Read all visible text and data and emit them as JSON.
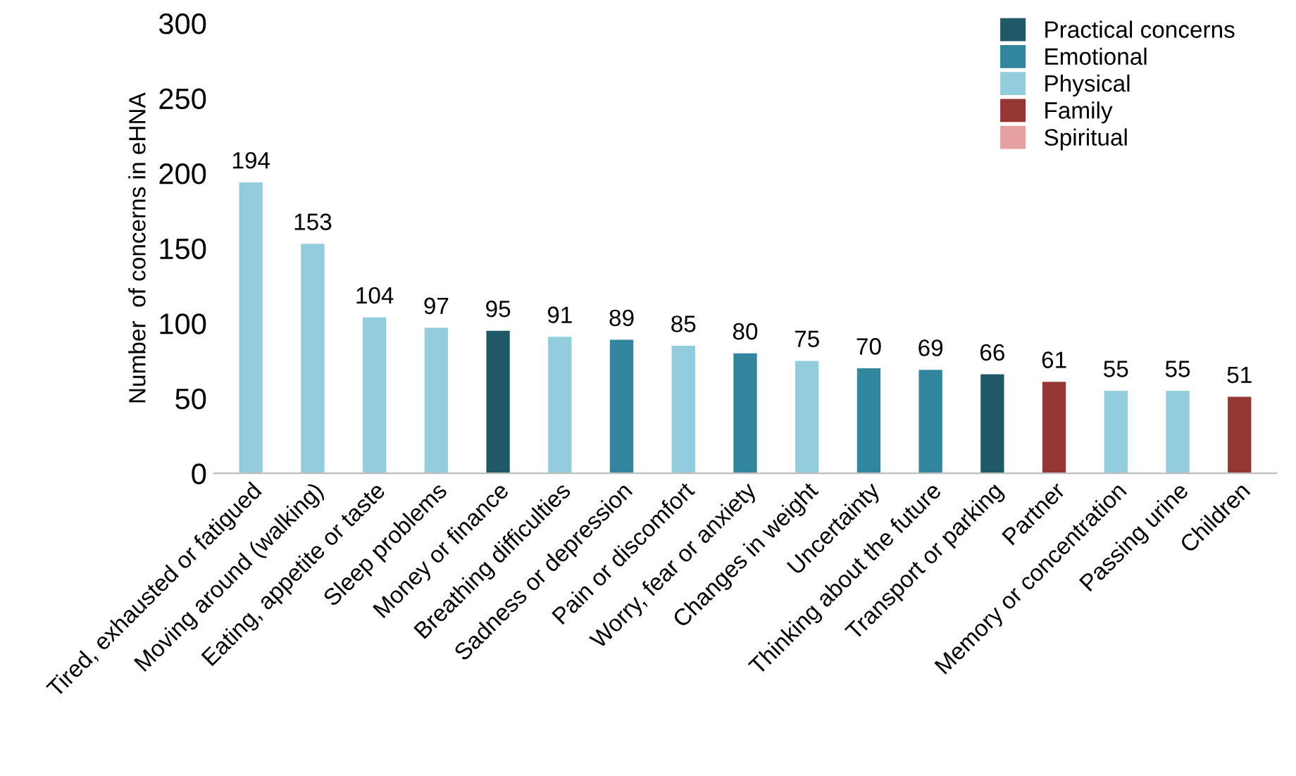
{
  "chart_data": {
    "type": "bar",
    "ylabel": "Number  of concerns in eHNA",
    "categories": [
      "Tired, exhausted or fatigued",
      "Moving around (walking)",
      "Eating, appetite or taste",
      "Sleep problems",
      "Money or finance",
      "Breathing difficulties",
      "Sadness or depression",
      "Pain or discomfort",
      "Worry, fear or anxiety",
      "Changes in weight",
      "Uncertainty",
      "Thinking about the future",
      "Transport or parking",
      "Partner",
      "Memory or concentration",
      "Passing urine",
      "Children"
    ],
    "series": [
      {
        "name": "Practical concerns",
        "color": "#215868",
        "values": [
          null,
          null,
          null,
          null,
          95,
          null,
          null,
          null,
          null,
          null,
          null,
          null,
          66,
          null,
          null,
          null,
          null
        ]
      },
      {
        "name": "Emotional",
        "color": "#31859c",
        "values": [
          null,
          null,
          null,
          null,
          null,
          null,
          89,
          null,
          80,
          null,
          70,
          69,
          null,
          null,
          null,
          null,
          null
        ]
      },
      {
        "name": "Physical",
        "color": "#93cddd",
        "values": [
          194,
          153,
          104,
          97,
          null,
          91,
          null,
          85,
          null,
          75,
          null,
          null,
          null,
          null,
          55,
          55,
          null
        ]
      },
      {
        "name": "Family",
        "color": "#953735",
        "values": [
          null,
          null,
          null,
          null,
          null,
          null,
          null,
          null,
          null,
          null,
          null,
          null,
          null,
          61,
          null,
          null,
          51
        ]
      },
      {
        "name": "Spiritual",
        "color": "#e6a0a0",
        "values": [
          null,
          null,
          null,
          null,
          null,
          null,
          null,
          null,
          null,
          null,
          null,
          null,
          null,
          null,
          null,
          null,
          null
        ]
      }
    ],
    "ylim": [
      0,
      300
    ],
    "yticks": [
      0,
      50,
      100,
      150,
      200,
      250,
      300
    ],
    "grid": false,
    "legend": "top right",
    "data_labels": true
  }
}
